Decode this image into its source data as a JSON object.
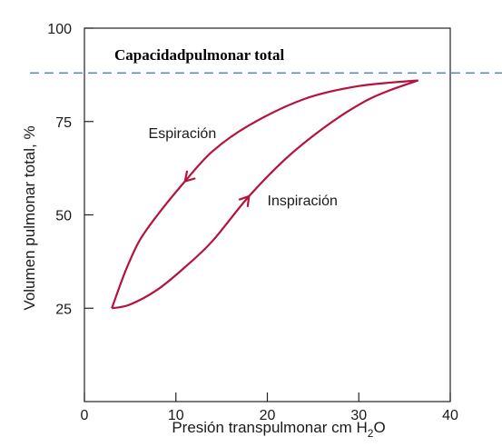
{
  "chart_data": {
    "type": "line",
    "title": "",
    "xlabel": "Presión transpulmonar cm H",
    "xlabel_sub": "2",
    "xlabel_tail": "O",
    "ylabel": "Volumen pulmonar total, %",
    "xlim": [
      0,
      40
    ],
    "ylim": [
      0,
      100
    ],
    "x_ticks": [
      "0",
      "10",
      "20",
      "30",
      "40"
    ],
    "y_ticks": [
      "25",
      "50",
      "75",
      "100"
    ],
    "grid": false,
    "series": [
      {
        "name": "Espiración",
        "color": "#b5123e",
        "points": [
          [
            36.5,
            86
          ],
          [
            30,
            84.5
          ],
          [
            24,
            81
          ],
          [
            18,
            74
          ],
          [
            14,
            67
          ],
          [
            11,
            59
          ],
          [
            8,
            50
          ],
          [
            6,
            43
          ],
          [
            4.5,
            35
          ],
          [
            3,
            25
          ]
        ]
      },
      {
        "name": "Inspiración",
        "color": "#b5123e",
        "points": [
          [
            3,
            25
          ],
          [
            5,
            26
          ],
          [
            8,
            30
          ],
          [
            11,
            36
          ],
          [
            14,
            43
          ],
          [
            18,
            55
          ],
          [
            22,
            65
          ],
          [
            26,
            73
          ],
          [
            30,
            79.5
          ],
          [
            33,
            83
          ],
          [
            36.5,
            86
          ]
        ]
      }
    ],
    "annotations": [
      {
        "text": "Capacidadpulmonar total",
        "style": "bold",
        "y": 88,
        "line": "dashed",
        "line_color": "#4f7fbf"
      }
    ]
  }
}
